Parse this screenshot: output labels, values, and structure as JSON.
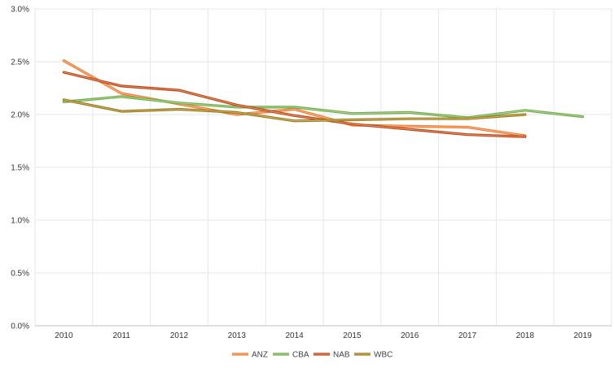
{
  "chart_data": {
    "type": "line",
    "title": "",
    "xlabel": "",
    "ylabel": "",
    "x": [
      "2010",
      "2011",
      "2012",
      "2013",
      "2014",
      "2015",
      "2016",
      "2017",
      "2018",
      "2019"
    ],
    "y_ticks": [
      "0.0%",
      "0.5%",
      "1.0%",
      "1.5%",
      "2.0%",
      "2.5%",
      "3.0%"
    ],
    "ylim": [
      0,
      3
    ],
    "grid": "vertical and horizontal, light gray",
    "legend_position": "bottom",
    "series": [
      {
        "name": "ANZ",
        "color": "#ED7D31",
        "values": [
          2.51,
          2.2,
          2.1,
          2.0,
          2.05,
          1.9,
          1.89,
          1.88,
          1.8,
          null
        ]
      },
      {
        "name": "CBA",
        "color": "#70AD47",
        "values": [
          2.12,
          2.17,
          2.11,
          2.07,
          2.07,
          2.01,
          2.02,
          1.97,
          2.04,
          1.98
        ]
      },
      {
        "name": "NAB",
        "color": "#C0440E",
        "values": [
          2.4,
          2.27,
          2.23,
          2.09,
          1.99,
          1.91,
          1.86,
          1.81,
          1.79,
          null
        ]
      },
      {
        "name": "WBC",
        "color": "#9C7A13",
        "values": [
          2.14,
          2.03,
          2.05,
          2.02,
          1.94,
          1.95,
          1.96,
          1.96,
          2.0,
          null
        ]
      }
    ]
  }
}
